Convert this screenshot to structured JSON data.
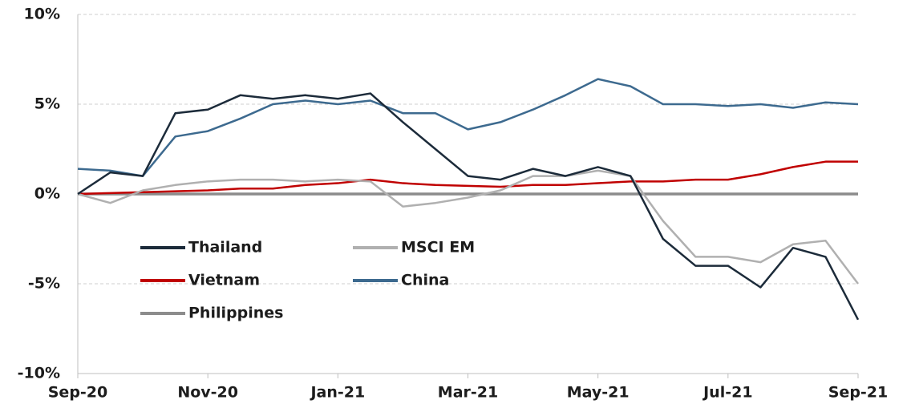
{
  "chart_data": {
    "type": "line",
    "categories": [
      "Sep-20",
      null,
      null,
      null,
      "Nov-20",
      null,
      null,
      null,
      "Jan-21",
      null,
      null,
      null,
      "Mar-21",
      null,
      null,
      null,
      "May-21",
      null,
      null,
      null,
      "Jul-21",
      null,
      null,
      null,
      "Sep-21"
    ],
    "series": [
      {
        "name": "Thailand",
        "color": "#1c2b3a",
        "values": [
          0,
          1.2,
          1.0,
          4.5,
          4.7,
          5.5,
          5.3,
          5.5,
          5.3,
          5.6,
          4.0,
          2.5,
          1.0,
          0.8,
          1.4,
          1.0,
          1.5,
          1.0,
          -2.5,
          -4.0,
          -4.0,
          -5.2,
          -3.0,
          -3.5,
          -7.0
        ]
      },
      {
        "name": "MSCI EM",
        "color": "#b0b0b0",
        "values": [
          0,
          -0.5,
          0.2,
          0.5,
          0.7,
          0.8,
          0.8,
          0.7,
          0.8,
          0.7,
          -0.7,
          -0.5,
          -0.2,
          0.2,
          1.0,
          1.0,
          1.3,
          1.0,
          -1.5,
          -3.5,
          -3.5,
          -3.8,
          -2.8,
          -2.6,
          -5.0
        ]
      },
      {
        "name": "Vietnam",
        "color": "#c00000",
        "values": [
          0,
          0.05,
          0.1,
          0.15,
          0.2,
          0.3,
          0.3,
          0.5,
          0.6,
          0.8,
          0.6,
          0.5,
          0.45,
          0.4,
          0.5,
          0.5,
          0.6,
          0.7,
          0.7,
          0.8,
          0.8,
          1.1,
          1.5,
          1.8,
          1.8
        ]
      },
      {
        "name": "China",
        "color": "#3d6a8f",
        "values": [
          1.4,
          1.3,
          1.0,
          3.2,
          3.5,
          4.2,
          5.0,
          5.2,
          5.0,
          5.2,
          4.5,
          4.5,
          3.6,
          4.0,
          4.7,
          5.5,
          6.4,
          6.0,
          5.0,
          5.0,
          4.9,
          5.0,
          4.8,
          5.1,
          5.0
        ]
      },
      {
        "name": "Philippines",
        "color": "#8c8c8c",
        "values": [
          0,
          0,
          0,
          0,
          0,
          0,
          0,
          0,
          0,
          0,
          0,
          0,
          0,
          0,
          0,
          0,
          0,
          0,
          0,
          0,
          0,
          0,
          0,
          0,
          0
        ]
      }
    ],
    "ylim": [
      -10,
      10
    ],
    "yticks": [
      {
        "value": -10,
        "label": "-10%"
      },
      {
        "value": -5,
        "label": "-5%"
      },
      {
        "value": 0,
        "label": "0%"
      },
      {
        "value": 5,
        "label": "5%"
      },
      {
        "value": 10,
        "label": "10%"
      }
    ],
    "grid": true
  }
}
